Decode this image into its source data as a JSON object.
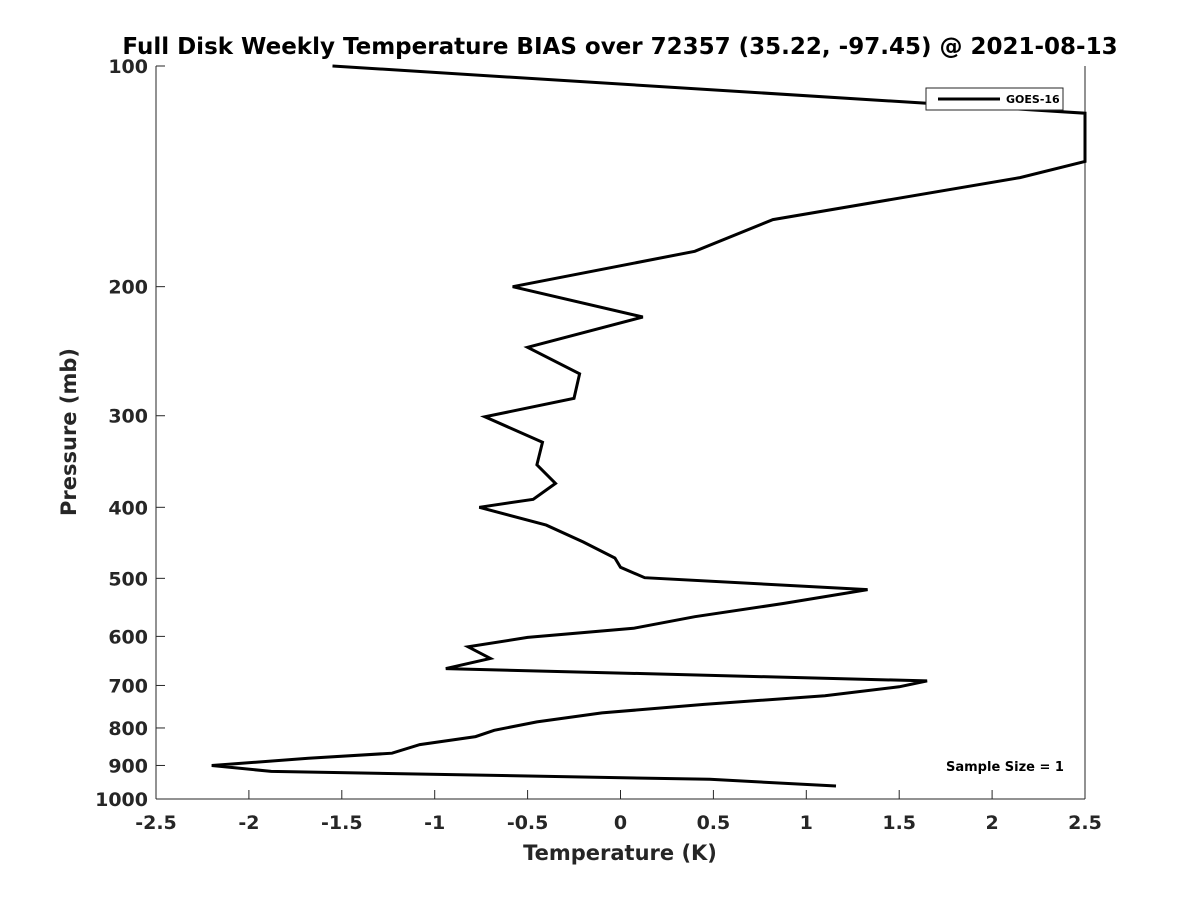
{
  "chart_data": {
    "type": "line",
    "title": "Full Disk Weekly Temperature BIAS over 72357 (35.22, -97.45) @ 2021-08-13",
    "xlabel": "Temperature (K)",
    "ylabel": "Pressure (mb)",
    "xlim": [
      -2.5,
      2.5
    ],
    "ylim": [
      100,
      1000
    ],
    "y_scale": "log",
    "y_direction": "reversed",
    "xticks": [
      -2.5,
      -2,
      -1.5,
      -1,
      -0.5,
      0,
      0.5,
      1,
      1.5,
      2,
      2.5
    ],
    "xtick_labels": [
      "-2.5",
      "-2",
      "-1.5",
      "-1",
      "-0.5",
      "0",
      "0.5",
      "1",
      "1.5",
      "2",
      "2.5"
    ],
    "yticks": [
      100,
      200,
      300,
      400,
      500,
      600,
      700,
      800,
      900,
      1000
    ],
    "ytick_labels": [
      "100",
      "200",
      "300",
      "400",
      "500",
      "600",
      "700",
      "800",
      "900",
      "1000"
    ],
    "grid": false,
    "legend_placement": "top-right",
    "series": [
      {
        "name": "GOES-16",
        "color": "#000000",
        "points": [
          {
            "x": -1.55,
            "y": 100
          },
          {
            "x": 2.5,
            "y": 116
          },
          {
            "x": 2.5,
            "y": 135
          },
          {
            "x": 2.15,
            "y": 142
          },
          {
            "x": 0.82,
            "y": 162
          },
          {
            "x": 0.4,
            "y": 179
          },
          {
            "x": -0.58,
            "y": 200
          },
          {
            "x": 0.12,
            "y": 220
          },
          {
            "x": -0.5,
            "y": 242
          },
          {
            "x": -0.22,
            "y": 263
          },
          {
            "x": -0.25,
            "y": 284
          },
          {
            "x": -0.73,
            "y": 301
          },
          {
            "x": -0.42,
            "y": 326
          },
          {
            "x": -0.45,
            "y": 350
          },
          {
            "x": -0.35,
            "y": 371
          },
          {
            "x": -0.47,
            "y": 390
          },
          {
            "x": -0.76,
            "y": 400
          },
          {
            "x": -0.4,
            "y": 423
          },
          {
            "x": -0.2,
            "y": 446
          },
          {
            "x": -0.03,
            "y": 469
          },
          {
            "x": 0.0,
            "y": 483
          },
          {
            "x": 0.13,
            "y": 499
          },
          {
            "x": 1.33,
            "y": 518
          },
          {
            "x": 0.88,
            "y": 541
          },
          {
            "x": 0.4,
            "y": 564
          },
          {
            "x": 0.07,
            "y": 585
          },
          {
            "x": -0.5,
            "y": 602
          },
          {
            "x": -0.82,
            "y": 620
          },
          {
            "x": -0.7,
            "y": 643
          },
          {
            "x": -0.94,
            "y": 664
          },
          {
            "x": 1.65,
            "y": 690
          },
          {
            "x": 1.5,
            "y": 703
          },
          {
            "x": 1.1,
            "y": 723
          },
          {
            "x": 0.45,
            "y": 743
          },
          {
            "x": -0.1,
            "y": 763
          },
          {
            "x": -0.45,
            "y": 785
          },
          {
            "x": -0.68,
            "y": 806
          },
          {
            "x": -0.78,
            "y": 822
          },
          {
            "x": -1.08,
            "y": 843
          },
          {
            "x": -1.23,
            "y": 866
          },
          {
            "x": -1.68,
            "y": 880
          },
          {
            "x": -2.2,
            "y": 900
          },
          {
            "x": -1.88,
            "y": 917
          },
          {
            "x": 0.48,
            "y": 940
          },
          {
            "x": 1.16,
            "y": 960
          }
        ]
      }
    ],
    "annotations": [
      "Sample Size = 1"
    ]
  }
}
